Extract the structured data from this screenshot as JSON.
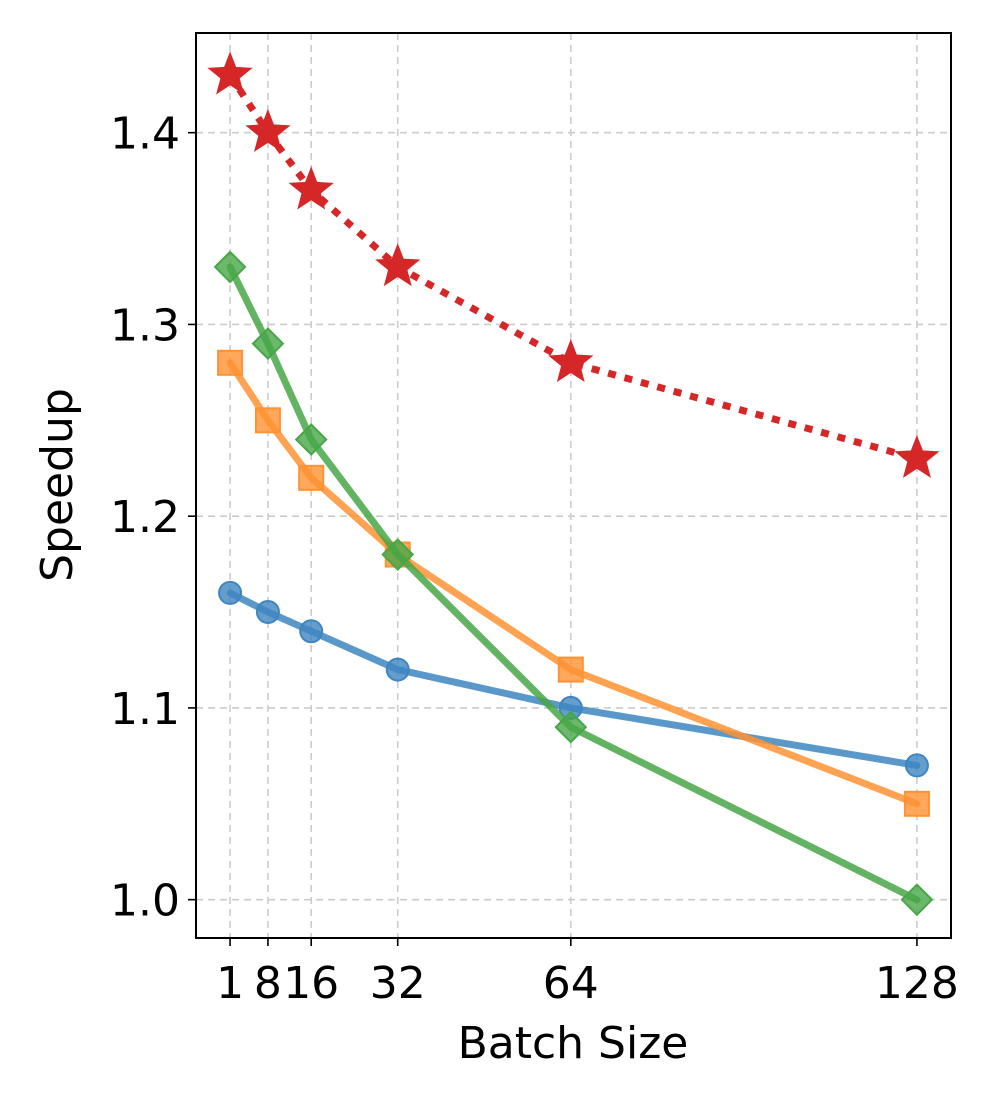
{
  "chart_data": {
    "type": "line",
    "title": "",
    "xlabel": "Batch Size",
    "ylabel": "Speedup",
    "x": [
      1,
      8,
      16,
      32,
      64,
      128
    ],
    "x_tick_labels": [
      "1",
      "8",
      "16",
      "32",
      "64",
      "128"
    ],
    "y_ticks": [
      1.0,
      1.1,
      1.2,
      1.3,
      1.4
    ],
    "y_tick_labels": [
      "1.0",
      "1.1",
      "1.2",
      "1.3",
      "1.4"
    ],
    "xlim": [
      -5.3,
      134.3
    ],
    "ylim": [
      0.98,
      1.452
    ],
    "grid": true,
    "legend": "none",
    "series": [
      {
        "name": "series-1",
        "color": "#3e86c1",
        "marker": "circle",
        "linestyle": "solid",
        "values": [
          1.16,
          1.15,
          1.14,
          1.12,
          1.1,
          1.07
        ]
      },
      {
        "name": "series-2",
        "color": "#ff9233",
        "marker": "square",
        "linestyle": "solid",
        "values": [
          1.28,
          1.25,
          1.22,
          1.18,
          1.12,
          1.05
        ]
      },
      {
        "name": "series-3",
        "color": "#47a647",
        "marker": "diamond",
        "linestyle": "solid",
        "values": [
          1.33,
          1.29,
          1.24,
          1.18,
          1.09,
          1.0
        ]
      },
      {
        "name": "series-4",
        "color": "#d62728",
        "marker": "star",
        "linestyle": "dotted",
        "values": [
          1.43,
          1.4,
          1.37,
          1.33,
          1.28,
          1.23
        ]
      }
    ]
  }
}
